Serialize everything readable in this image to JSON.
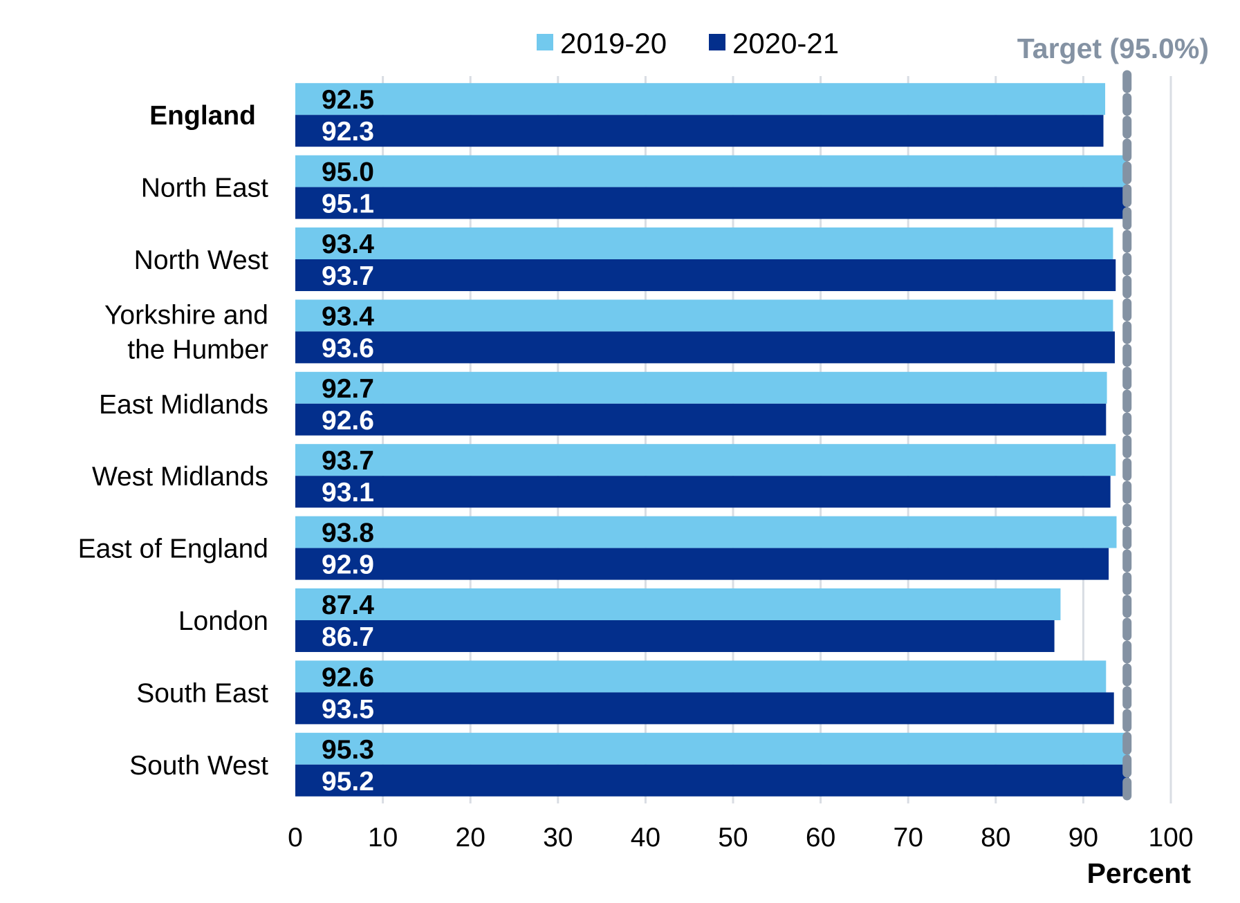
{
  "chart_data": {
    "type": "bar",
    "orientation": "horizontal",
    "categories": [
      "England",
      "North East",
      "North West",
      "Yorkshire and the Humber",
      "East Midlands",
      "West Midlands",
      "East of England",
      "London",
      "South East",
      "South West"
    ],
    "category_label_lines": [
      [
        "England"
      ],
      [
        "North East"
      ],
      [
        "North West"
      ],
      [
        "Yorkshire and",
        "the Humber"
      ],
      [
        "East Midlands"
      ],
      [
        "West Midlands"
      ],
      [
        "East of England"
      ],
      [
        "London"
      ],
      [
        "South East"
      ],
      [
        "South West"
      ]
    ],
    "emphasized_category": "England",
    "series": [
      {
        "name": "2019-20",
        "color": "#72c9ee",
        "label_color": "#000000",
        "values": [
          92.5,
          95.0,
          93.4,
          93.4,
          92.7,
          93.7,
          93.8,
          87.4,
          92.6,
          95.3
        ]
      },
      {
        "name": "2020-21",
        "color": "#032f8c",
        "label_color": "#ffffff",
        "values": [
          92.3,
          95.1,
          93.7,
          93.6,
          92.6,
          93.1,
          92.9,
          86.7,
          93.5,
          95.2
        ]
      }
    ],
    "data_labels": [
      [
        "92.5",
        "95.0",
        "93.4",
        "93.4",
        "92.7",
        "93.7",
        "93.8",
        "87.4",
        "92.6",
        "95.3"
      ],
      [
        "92.3",
        "95.1",
        "93.7",
        "93.6",
        "92.6",
        "93.1",
        "92.9",
        "86.7",
        "93.5",
        "95.2"
      ]
    ],
    "xlim": [
      0,
      100
    ],
    "xticks": [
      0,
      10,
      20,
      30,
      40,
      50,
      60,
      70,
      80,
      90,
      100
    ],
    "xlabel": "Percent",
    "ylabel": "",
    "title": "",
    "grid": "vertical",
    "grid_color": "#d9dde3",
    "legend_position": "top",
    "target": {
      "value": 95.0,
      "label": "Target (95.0%)",
      "color": "#8492a3",
      "style": "dashed"
    }
  }
}
